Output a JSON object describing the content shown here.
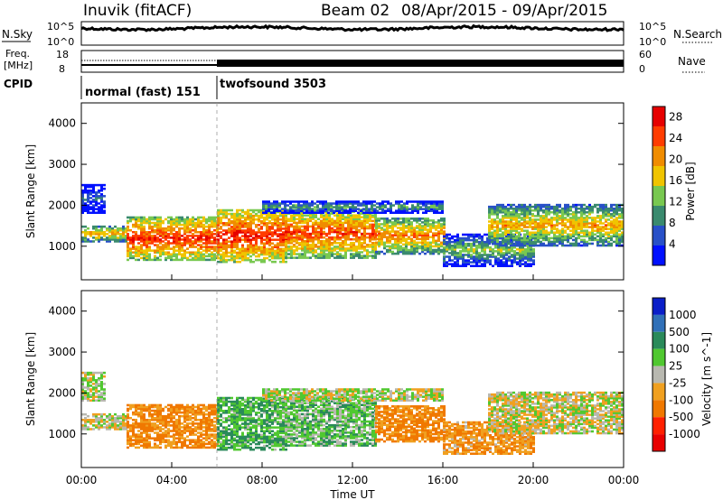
{
  "header": {
    "station": "Inuvik (fitACF)",
    "beam": "Beam 02",
    "date_range": "08/Apr/2015 - 09/Apr/2015"
  },
  "panels": {
    "nsky": {
      "label": "N.Sky",
      "tick_top": "10^5",
      "tick_bottom": "10^0",
      "right_label": "N.Search",
      "right_tick_top": "10^5",
      "right_tick_bottom": "10^0"
    },
    "freq": {
      "label_line1": "Freq.",
      "label_line2": "[MHz]",
      "tick_top": "18",
      "tick_bottom": "8",
      "right_label": "Nave",
      "right_tick_top": "60",
      "right_tick_bottom": "0"
    },
    "cpid": {
      "label": "CPID",
      "segments": [
        {
          "name": "normal (fast) 151"
        },
        {
          "name": "twofsound 3503"
        }
      ]
    }
  },
  "chart_data": [
    {
      "type": "heatmap",
      "title": "",
      "xlabel": "",
      "ylabel": "Slant Range [km]",
      "ylim": [
        180,
        4500
      ],
      "yticks": [
        1000,
        2000,
        3000,
        4000
      ],
      "colorbar": {
        "label": "Power [dB]",
        "ticks": [
          4,
          8,
          12,
          16,
          20,
          24,
          28
        ],
        "range": [
          0,
          30
        ],
        "colors": [
          "#0010ff",
          "#2850c8",
          "#3a8a6e",
          "#78c850",
          "#f0c400",
          "#f08c00",
          "#ff3c00",
          "#e60000"
        ]
      }
    },
    {
      "type": "heatmap",
      "title": "",
      "xlabel": "Time UT",
      "ylabel": "Slant Range [km]",
      "ylim": [
        180,
        4500
      ],
      "yticks": [
        1000,
        2000,
        3000,
        4000
      ],
      "xticks": [
        "00:00",
        "04:00",
        "08:00",
        "12:00",
        "16:00",
        "20:00",
        "00:00"
      ],
      "colorbar": {
        "label": "Velocity [m s^-1]",
        "ticks": [
          "1000",
          "500",
          "100",
          "25",
          "-25",
          "-100",
          "-500",
          "-1000"
        ],
        "colors": [
          "#0a1ec8",
          "#3070b8",
          "#2a8a5a",
          "#50c830",
          "#b8b8b0",
          "#f0a020",
          "#f07800",
          "#ff2000",
          "#e80000"
        ]
      }
    }
  ],
  "echo_bands": [
    {
      "t0": 0,
      "t1": 2,
      "r0": 1100,
      "r1": 1500,
      "power": 20,
      "vel": -15
    },
    {
      "t0": 2,
      "t1": 6,
      "r0": 650,
      "r1": 1700,
      "power": 26,
      "vel": -120
    },
    {
      "t0": 6,
      "t1": 9,
      "r0": 600,
      "r1": 1900,
      "power": 27,
      "vel": 90
    },
    {
      "t0": 9,
      "t1": 13,
      "r0": 700,
      "r1": 1900,
      "power": 25,
      "vel": 60
    },
    {
      "t0": 13,
      "t1": 16,
      "r0": 800,
      "r1": 1700,
      "power": 22,
      "vel": -130
    },
    {
      "t0": 16,
      "t1": 20,
      "r0": 500,
      "r1": 1300,
      "power": 14,
      "vel": -90
    },
    {
      "t0": 18,
      "t1": 24,
      "r0": 1000,
      "r1": 2000,
      "power": 20,
      "vel": -10
    },
    {
      "t0": 0,
      "t1": 1,
      "r0": 1800,
      "r1": 2500,
      "power": 8,
      "vel": 20
    },
    {
      "t0": 8,
      "t1": 16,
      "r0": 1800,
      "r1": 2100,
      "power": 12,
      "vel": 15
    }
  ]
}
